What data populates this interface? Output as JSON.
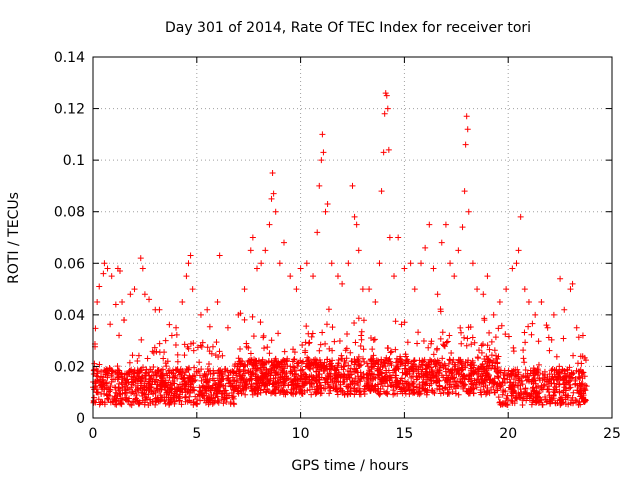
{
  "chart_data": {
    "type": "scatter",
    "title": "Day 301 of 2014, Rate Of TEC Index for receiver tori",
    "xlabel": "GPS time / hours",
    "ylabel": "ROTI / TECUs",
    "xlim": [
      0,
      25
    ],
    "ylim": [
      0,
      0.14
    ],
    "x_ticks": [
      0,
      5,
      10,
      15,
      20,
      25
    ],
    "y_ticks": [
      0,
      0.02,
      0.04,
      0.06,
      0.08,
      0.1,
      0.12,
      0.14
    ],
    "x_tick_labels": [
      "0",
      "5",
      "10",
      "15",
      "20",
      "25"
    ],
    "y_tick_labels": [
      "0",
      "0.02",
      "0.04",
      "0.06",
      "0.08",
      "0.1",
      "0.12",
      "0.14"
    ],
    "grid": true,
    "marker": "+",
    "marker_color": "#ff0000",
    "x_range_of_data": [
      0,
      23.8
    ],
    "series": [
      {
        "points": [
          [
            0.1,
            0.012
          ],
          [
            0.2,
            0.045
          ],
          [
            0.3,
            0.051
          ],
          [
            0.5,
            0.056
          ],
          [
            0.55,
            0.06
          ],
          [
            0.7,
            0.058
          ],
          [
            0.9,
            0.055
          ],
          [
            1.1,
            0.044
          ],
          [
            1.2,
            0.058
          ],
          [
            1.3,
            0.057
          ],
          [
            1.4,
            0.045
          ],
          [
            1.5,
            0.038
          ],
          [
            1.8,
            0.048
          ],
          [
            2.0,
            0.05
          ],
          [
            2.3,
            0.062
          ],
          [
            2.4,
            0.058
          ],
          [
            2.5,
            0.048
          ],
          [
            2.7,
            0.046
          ],
          [
            3.0,
            0.042
          ],
          [
            3.2,
            0.042
          ],
          [
            3.5,
            0.03
          ],
          [
            3.8,
            0.032
          ],
          [
            4.0,
            0.035
          ],
          [
            4.3,
            0.045
          ],
          [
            4.5,
            0.055
          ],
          [
            4.6,
            0.06
          ],
          [
            4.7,
            0.063
          ],
          [
            4.8,
            0.05
          ],
          [
            5.2,
            0.04
          ],
          [
            5.5,
            0.042
          ],
          [
            6.0,
            0.045
          ],
          [
            6.1,
            0.063
          ],
          [
            6.5,
            0.035
          ],
          [
            7.0,
            0.04
          ],
          [
            7.3,
            0.05
          ],
          [
            7.6,
            0.065
          ],
          [
            7.7,
            0.07
          ],
          [
            7.9,
            0.058
          ],
          [
            8.1,
            0.06
          ],
          [
            8.3,
            0.065
          ],
          [
            8.5,
            0.075
          ],
          [
            8.6,
            0.085
          ],
          [
            8.65,
            0.095
          ],
          [
            8.7,
            0.087
          ],
          [
            8.8,
            0.08
          ],
          [
            9.0,
            0.06
          ],
          [
            9.2,
            0.068
          ],
          [
            9.5,
            0.055
          ],
          [
            9.8,
            0.05
          ],
          [
            10.0,
            0.058
          ],
          [
            10.3,
            0.06
          ],
          [
            10.6,
            0.055
          ],
          [
            10.8,
            0.072
          ],
          [
            10.9,
            0.09
          ],
          [
            11.0,
            0.1
          ],
          [
            11.05,
            0.11
          ],
          [
            11.1,
            0.103
          ],
          [
            11.2,
            0.08
          ],
          [
            11.3,
            0.083
          ],
          [
            11.5,
            0.06
          ],
          [
            11.8,
            0.055
          ],
          [
            12.0,
            0.052
          ],
          [
            12.3,
            0.06
          ],
          [
            12.5,
            0.09
          ],
          [
            12.6,
            0.078
          ],
          [
            12.7,
            0.075
          ],
          [
            12.8,
            0.065
          ],
          [
            13.0,
            0.05
          ],
          [
            13.3,
            0.05
          ],
          [
            13.6,
            0.045
          ],
          [
            13.8,
            0.06
          ],
          [
            13.9,
            0.088
          ],
          [
            14.0,
            0.103
          ],
          [
            14.05,
            0.118
          ],
          [
            14.1,
            0.126
          ],
          [
            14.15,
            0.125
          ],
          [
            14.2,
            0.12
          ],
          [
            14.25,
            0.104
          ],
          [
            14.3,
            0.07
          ],
          [
            14.5,
            0.055
          ],
          [
            14.7,
            0.07
          ],
          [
            15.0,
            0.058
          ],
          [
            15.3,
            0.06
          ],
          [
            15.5,
            0.05
          ],
          [
            15.8,
            0.06
          ],
          [
            16.0,
            0.066
          ],
          [
            16.2,
            0.075
          ],
          [
            16.4,
            0.058
          ],
          [
            16.6,
            0.048
          ],
          [
            16.8,
            0.068
          ],
          [
            17.0,
            0.075
          ],
          [
            17.2,
            0.06
          ],
          [
            17.4,
            0.055
          ],
          [
            17.6,
            0.065
          ],
          [
            17.8,
            0.074
          ],
          [
            17.9,
            0.088
          ],
          [
            17.95,
            0.106
          ],
          [
            18.0,
            0.117
          ],
          [
            18.05,
            0.112
          ],
          [
            18.1,
            0.08
          ],
          [
            18.3,
            0.06
          ],
          [
            18.5,
            0.05
          ],
          [
            18.8,
            0.048
          ],
          [
            19.0,
            0.055
          ],
          [
            19.3,
            0.04
          ],
          [
            19.6,
            0.045
          ],
          [
            19.9,
            0.05
          ],
          [
            20.2,
            0.058
          ],
          [
            20.4,
            0.06
          ],
          [
            20.5,
            0.065
          ],
          [
            20.6,
            0.078
          ],
          [
            20.8,
            0.05
          ],
          [
            21.0,
            0.045
          ],
          [
            21.3,
            0.04
          ],
          [
            21.6,
            0.045
          ],
          [
            21.9,
            0.035
          ],
          [
            22.2,
            0.04
          ],
          [
            22.5,
            0.054
          ],
          [
            22.7,
            0.042
          ],
          [
            23.0,
            0.05
          ],
          [
            23.1,
            0.052
          ],
          [
            23.3,
            0.035
          ],
          [
            23.6,
            0.032
          ]
        ]
      }
    ]
  }
}
